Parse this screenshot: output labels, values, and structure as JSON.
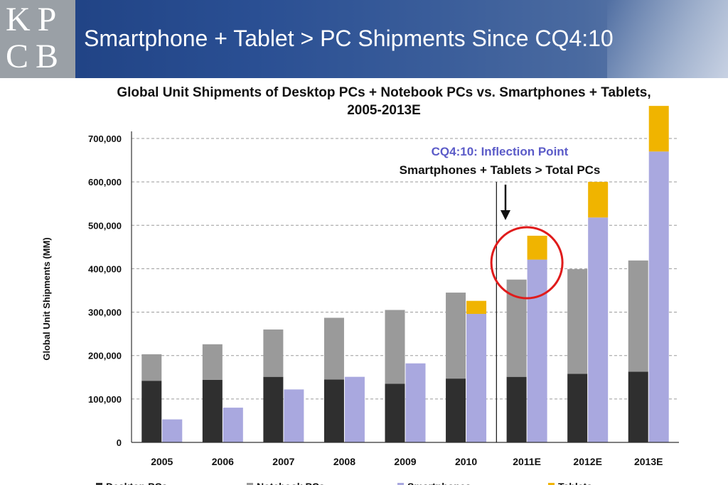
{
  "header": {
    "logo_line1": "KP",
    "logo_line2": "CB",
    "title": "Smartphone + Tablet > PC Shipments Since CQ4:10",
    "background_color": "#2a4f93"
  },
  "chart_data": {
    "type": "bar",
    "title_line1": "Global Unit Shipments of Desktop PCs + Notebook PCs vs. Smartphones + Tablets,",
    "title_line2": "2005-2013E",
    "ylabel": "Global Unit Shipments (MM)",
    "xlabel": "",
    "ylim": [
      0,
      700000
    ],
    "yticks": [
      "0",
      "100,000",
      "200,000",
      "300,000",
      "400,000",
      "500,000",
      "600,000",
      "700,000"
    ],
    "grid": true,
    "categories": [
      "2005",
      "2006",
      "2007",
      "2008",
      "2009",
      "2010",
      "2011E",
      "2012E",
      "2013E"
    ],
    "series": [
      {
        "name": "Desktop PCs",
        "stack": "PCs",
        "color": "#2f2f2f",
        "values": [
          142000,
          144000,
          151000,
          145000,
          135000,
          147000,
          151000,
          158000,
          163000
        ]
      },
      {
        "name": "Notebook PCs",
        "stack": "PCs",
        "color": "#9a9a9a",
        "values": [
          61000,
          82000,
          109000,
          142000,
          170000,
          198000,
          224000,
          241000,
          256000
        ]
      },
      {
        "name": "Smartphones",
        "stack": "Mobile",
        "color": "#a9a8df",
        "values": [
          53000,
          80000,
          122000,
          151000,
          182000,
          296000,
          421000,
          518000,
          670000
        ]
      },
      {
        "name": "Tablets",
        "stack": "Mobile",
        "color": "#f0b400",
        "values": [
          0,
          0,
          0,
          0,
          0,
          30000,
          55000,
          82000,
          105000
        ]
      }
    ],
    "legend": {
      "placement": "bottom"
    },
    "annotation": {
      "line1": "CQ4:10: Inflection Point",
      "line1_color": "#5b5bc8",
      "line2": "Smartphones + Tablets > Total PCs",
      "highlight_category": "2011E",
      "highlight_color": "#e01b1b"
    }
  }
}
